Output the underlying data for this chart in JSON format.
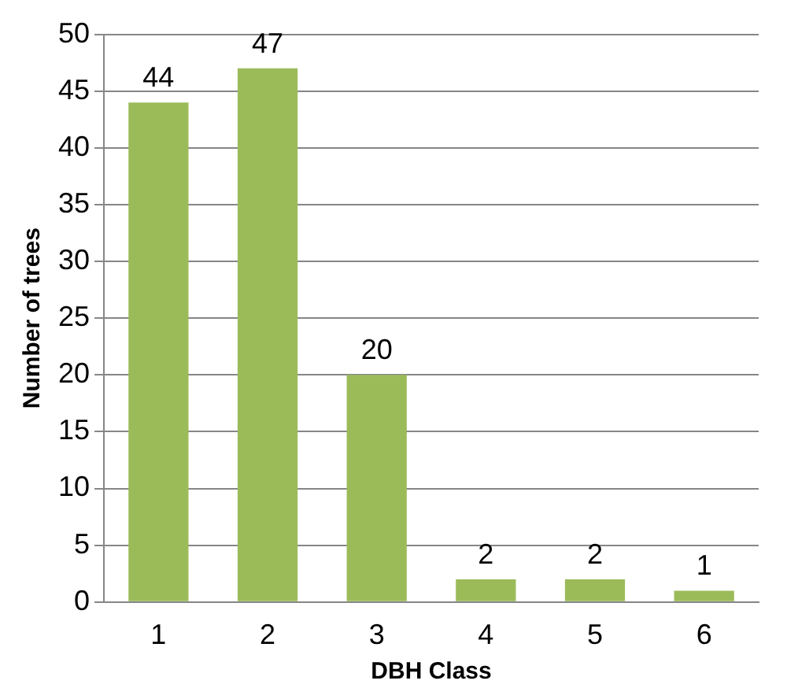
{
  "chart_data": {
    "type": "bar",
    "xlabel": "DBH Class",
    "ylabel": "Number of trees",
    "categories": [
      "1",
      "2",
      "3",
      "4",
      "5",
      "6"
    ],
    "values": [
      44,
      47,
      20,
      2,
      2,
      1
    ],
    "color": "#9bbb59",
    "ylim": [
      0,
      50
    ],
    "yticks": [
      0,
      5,
      10,
      15,
      20,
      25,
      30,
      35,
      40,
      45,
      50
    ],
    "grid": "y",
    "data_labels": true
  }
}
